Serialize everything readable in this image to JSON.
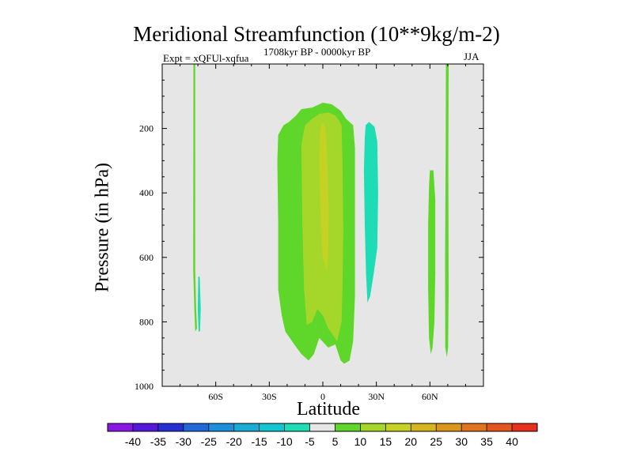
{
  "chart_data": {
    "type": "contour",
    "title": "Meridional Streamfunction (10**9kg/m-2)",
    "left_label": "Expt = xQFUl-xqfua",
    "center_label": "1708kyr BP - 0000kyr BP",
    "right_label": "JJA",
    "xlabel": "Latitude",
    "ylabel": "Pressure (in hPa)",
    "xlim": [
      -90,
      90
    ],
    "ylim": [
      0,
      1000
    ],
    "y_inverted": true,
    "x_ticks": [
      {
        "value": -60,
        "label": "60S"
      },
      {
        "value": -30,
        "label": "30S"
      },
      {
        "value": 0,
        "label": "0"
      },
      {
        "value": 30,
        "label": "30N"
      },
      {
        "value": 60,
        "label": "60N"
      }
    ],
    "y_ticks": [
      {
        "value": 200,
        "label": "200"
      },
      {
        "value": 400,
        "label": "400"
      },
      {
        "value": 600,
        "label": "600"
      },
      {
        "value": 800,
        "label": "800"
      },
      {
        "value": 1000,
        "label": "1000"
      }
    ],
    "background_color": "#e6e6e6",
    "contour_regions": [
      {
        "name": "thin-band-70S",
        "level": 5,
        "color": "#5ed62a",
        "outline": [
          [
            -72.5,
            0
          ],
          [
            -71.5,
            0
          ],
          [
            -71.5,
            640
          ],
          [
            -71.0,
            760
          ],
          [
            -70.5,
            820
          ],
          [
            -71.5,
            830
          ],
          [
            -72,
            760
          ],
          [
            -72.6,
            640
          ]
        ]
      },
      {
        "name": "blob-68S-negative",
        "level": -5,
        "color": "#1edcb4",
        "outline": [
          [
            -69.8,
            660
          ],
          [
            -69.0,
            660
          ],
          [
            -68.4,
            760
          ],
          [
            -68.8,
            830
          ],
          [
            -69.6,
            830
          ],
          [
            -70.1,
            760
          ]
        ]
      },
      {
        "name": "central-cell-outer",
        "level": 5,
        "color": "#5ed62a",
        "outline": [
          [
            -25,
            220
          ],
          [
            -22,
            190
          ],
          [
            -19,
            180
          ],
          [
            -15,
            160
          ],
          [
            -12,
            140
          ],
          [
            -6,
            135
          ],
          [
            0,
            120
          ],
          [
            5,
            125
          ],
          [
            10,
            145
          ],
          [
            13,
            170
          ],
          [
            17,
            190
          ],
          [
            18,
            260
          ],
          [
            18,
            500
          ],
          [
            18,
            720
          ],
          [
            17,
            860
          ],
          [
            15,
            920
          ],
          [
            12,
            930
          ],
          [
            10,
            920
          ],
          [
            7,
            870
          ],
          [
            3,
            880
          ],
          [
            -2,
            850
          ],
          [
            -5,
            900
          ],
          [
            -8,
            920
          ],
          [
            -12,
            900
          ],
          [
            -16,
            870
          ],
          [
            -21,
            830
          ],
          [
            -23,
            780
          ],
          [
            -25,
            700
          ],
          [
            -25,
            500
          ],
          [
            -25.5,
            300
          ]
        ]
      },
      {
        "name": "central-cell-inner",
        "level": 10,
        "color": "#a5d72a",
        "outline": [
          [
            -12,
            250
          ],
          [
            -10,
            190
          ],
          [
            -6,
            170
          ],
          [
            -2,
            155
          ],
          [
            3,
            150
          ],
          [
            7,
            160
          ],
          [
            9,
            175
          ],
          [
            10.5,
            190
          ],
          [
            11,
            300
          ],
          [
            11.5,
            520
          ],
          [
            11,
            700
          ],
          [
            10.5,
            800
          ],
          [
            8,
            860
          ],
          [
            3,
            820
          ],
          [
            0,
            780
          ],
          [
            -3,
            760
          ],
          [
            -6,
            800
          ],
          [
            -9,
            810
          ],
          [
            -10.5,
            700
          ],
          [
            -11.5,
            500
          ]
        ]
      },
      {
        "name": "central-cell-core",
        "level": 15,
        "color": "#c6d223",
        "outline": [
          [
            -1.5,
            210
          ],
          [
            0,
            180
          ],
          [
            1.5,
            200
          ],
          [
            2.5,
            300
          ],
          [
            3.3,
            450
          ],
          [
            3,
            560
          ],
          [
            2.3,
            640
          ],
          [
            0,
            600
          ],
          [
            -1,
            520
          ],
          [
            -1.6,
            400
          ],
          [
            -2,
            300
          ]
        ]
      },
      {
        "name": "blob-25N-negative",
        "level": -5,
        "color": "#1edcb4",
        "outline": [
          [
            24,
            190
          ],
          [
            26,
            180
          ],
          [
            29,
            195
          ],
          [
            30.5,
            240
          ],
          [
            31,
            400
          ],
          [
            30.5,
            570
          ],
          [
            28.5,
            650
          ],
          [
            26.5,
            720
          ],
          [
            25,
            740
          ],
          [
            24.2,
            650
          ],
          [
            23.5,
            500
          ],
          [
            23,
            330
          ],
          [
            23.5,
            230
          ]
        ]
      },
      {
        "name": "blob-60N",
        "level": 5,
        "color": "#5ed62a",
        "outline": [
          [
            60,
            330
          ],
          [
            62,
            330
          ],
          [
            63,
            420
          ],
          [
            63,
            650
          ],
          [
            62.5,
            800
          ],
          [
            61.5,
            880
          ],
          [
            60.5,
            900
          ],
          [
            59.5,
            850
          ],
          [
            59,
            700
          ],
          [
            59,
            500
          ],
          [
            59.5,
            380
          ]
        ]
      },
      {
        "name": "thin-band-70N",
        "level": 5,
        "color": "#5ed62a",
        "outline": [
          [
            69,
            0
          ],
          [
            70.5,
            0
          ],
          [
            70.3,
            300
          ],
          [
            70.5,
            700
          ],
          [
            70.2,
            880
          ],
          [
            69.5,
            910
          ],
          [
            68.6,
            880
          ],
          [
            68.5,
            600
          ],
          [
            68.8,
            300
          ]
        ]
      }
    ],
    "colorbar": {
      "levels": [
        "-40",
        "-35",
        "-30",
        "-25",
        "-20",
        "-15",
        "-10",
        "-5",
        "5",
        "10",
        "15",
        "20",
        "25",
        "30",
        "35",
        "40"
      ],
      "colors": [
        "#8a17e6",
        "#5318dc",
        "#2530d4",
        "#2068d8",
        "#1e8fdb",
        "#18acd6",
        "#12c7d2",
        "#1edcb4",
        "#e6e6e6",
        "#5ed62a",
        "#a5d72a",
        "#c6d223",
        "#d8b41e",
        "#dd961c",
        "#e0731c",
        "#e4551f",
        "#e8301e"
      ]
    }
  }
}
